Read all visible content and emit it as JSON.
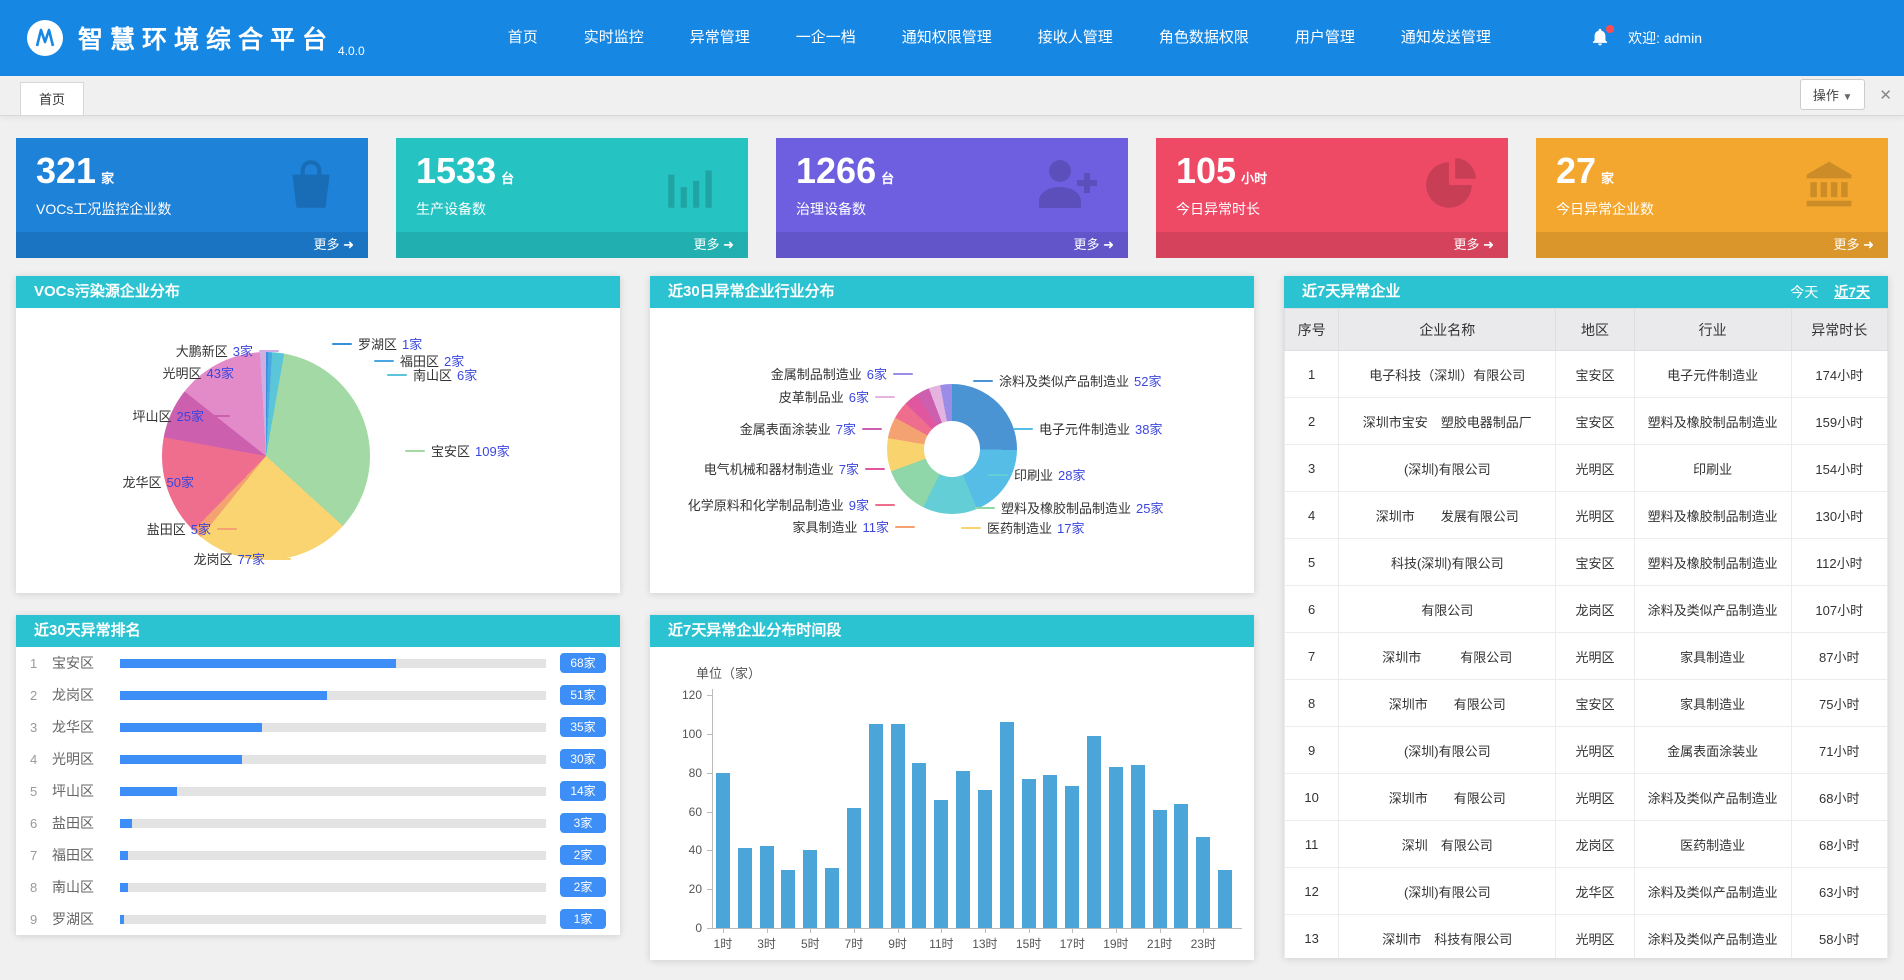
{
  "navbar": {
    "title": "智慧环境综合平台",
    "version": "4.0.0",
    "menu": [
      "首页",
      "实时监控",
      "异常管理",
      "一企一档",
      "通知权限管理",
      "接收人管理",
      "角色数据权限",
      "用户管理",
      "通知发送管理"
    ],
    "welcome": "欢迎: admin"
  },
  "tabbar": {
    "active_tab": "首页",
    "ops_label": "操作"
  },
  "stat_cards": [
    {
      "value": "321",
      "unit": "家",
      "label": "VOCs工况监控企业数",
      "more": "更多",
      "color": "#1e82d9",
      "footer_color": "rgba(0,0,0,0.10)",
      "icon": "bag-icon"
    },
    {
      "value": "1533",
      "unit": "台",
      "label": "生产设备数",
      "more": "更多",
      "color": "#26c3c3",
      "footer_color": "rgba(0,0,0,0.10)",
      "icon": "bar-chart-icon"
    },
    {
      "value": "1266",
      "unit": "台",
      "label": "治理设备数",
      "more": "更多",
      "color": "#6e5fe0",
      "footer_color": "rgba(0,0,0,0.10)",
      "icon": "user-plus-icon"
    },
    {
      "value": "105",
      "unit": "小时",
      "label": "今日异常时长",
      "more": "更多",
      "color": "#ee4a66",
      "footer_color": "rgba(0,0,0,0.10)",
      "icon": "pie-icon"
    },
    {
      "value": "27",
      "unit": "家",
      "label": "今日异常企业数",
      "more": "更多",
      "color": "#f3a72f",
      "footer_color": "rgba(0,0,0,0.10)",
      "icon": "bank-icon"
    }
  ],
  "chart_data": [
    {
      "id": "district_pie",
      "type": "pie",
      "title": "VOCs污染源企业分布",
      "unit": "家",
      "labels": [
        "罗湖区",
        "福田区",
        "南山区",
        "宝安区",
        "龙岗区",
        "盐田区",
        "龙华区",
        "坪山区",
        "光明区",
        "大鹏新区"
      ],
      "values": [
        1,
        2,
        6,
        109,
        77,
        5,
        50,
        25,
        43,
        3
      ],
      "colors": [
        "#3a8fd9",
        "#49a8e3",
        "#5bc6da",
        "#a3d9a5",
        "#f9d470",
        "#f5a273",
        "#ef6e8e",
        "#cc5fae",
        "#e38bc9",
        "#cfaee3"
      ],
      "legend_position": "around",
      "total": 321
    },
    {
      "id": "industry_donut",
      "type": "pie",
      "subtype": "donut",
      "title": "近30日异常企业行业分布",
      "unit": "家",
      "labels": [
        "涂料及类似产品制造业",
        "电子元件制造业",
        "印刷业",
        "塑料及橡胶制品制造业",
        "医药制造业",
        "家具制造业",
        "化学原料和化学制品制造业",
        "电气机械和器材制造业",
        "金属表面涂装业",
        "皮革制品业",
        "金属制品制造业"
      ],
      "values": [
        52,
        38,
        28,
        25,
        17,
        11,
        9,
        7,
        7,
        6,
        6
      ],
      "colors": [
        "#4a94d4",
        "#55bde6",
        "#63ced6",
        "#8fd6a8",
        "#f8d36e",
        "#f5a273",
        "#ef6e8e",
        "#e0579f",
        "#cc5fae",
        "#e5b3df",
        "#9b8ce8"
      ],
      "legend_position": "around",
      "total": 206
    },
    {
      "id": "rank30",
      "type": "bar",
      "orientation": "horizontal",
      "title": "近30天异常排名",
      "unit": "家",
      "categories": [
        "宝安区",
        "龙岗区",
        "龙华区",
        "光明区",
        "坪山区",
        "盐田区",
        "福田区",
        "南山区",
        "罗湖区"
      ],
      "values": [
        68,
        51,
        35,
        30,
        14,
        3,
        2,
        2,
        1
      ],
      "xlim": [
        0,
        105
      ]
    },
    {
      "id": "hour_dist",
      "type": "bar",
      "title": "近7天异常企业分布时间段",
      "ylabel": "单位（家）",
      "categories": [
        "1时",
        "2时",
        "3时",
        "4时",
        "5时",
        "6时",
        "7时",
        "8时",
        "9时",
        "10时",
        "11时",
        "12时",
        "13时",
        "14时",
        "15时",
        "16时",
        "17时",
        "18时",
        "19时",
        "20时",
        "21时",
        "22时",
        "23时",
        "24时"
      ],
      "values": [
        80,
        41,
        42,
        30,
        40,
        31,
        62,
        105,
        105,
        85,
        66,
        81,
        71,
        106,
        77,
        79,
        73,
        99,
        83,
        84,
        61,
        64,
        47,
        30
      ],
      "ylim": [
        0,
        120
      ],
      "ytick_step": 20,
      "xtick_labels": [
        "1时",
        "3时",
        "5时",
        "7时",
        "9时",
        "11时",
        "13时",
        "15时",
        "17时",
        "19时",
        "21时",
        "23时"
      ]
    }
  ],
  "table": {
    "title": "近7天异常企业",
    "filters": [
      "今天",
      "近7天"
    ],
    "active_filter": "近7天",
    "headers": [
      "序号",
      "企业名称",
      "地区",
      "行业",
      "异常时长"
    ],
    "rows": [
      [
        "1",
        "电子科技（深圳）有限公司",
        "宝安区",
        "电子元件制造业",
        "174小时"
      ],
      [
        "2",
        "深圳市宝安　塑胶电器制品厂",
        "宝安区",
        "塑料及橡胶制品制造业",
        "159小时"
      ],
      [
        "3",
        "(深圳)有限公司",
        "光明区",
        "印刷业",
        "154小时"
      ],
      [
        "4",
        "深圳市　　发展有限公司",
        "光明区",
        "塑料及橡胶制品制造业",
        "130小时"
      ],
      [
        "5",
        "科技(深圳)有限公司",
        "宝安区",
        "塑料及橡胶制品制造业",
        "112小时"
      ],
      [
        "6",
        "有限公司",
        "龙岗区",
        "涂料及类似产品制造业",
        "107小时"
      ],
      [
        "7",
        "深圳市　　　有限公司",
        "光明区",
        "家具制造业",
        "87小时"
      ],
      [
        "8",
        "深圳市　　有限公司",
        "宝安区",
        "家具制造业",
        "75小时"
      ],
      [
        "9",
        "(深圳)有限公司",
        "光明区",
        "金属表面涂装业",
        "71小时"
      ],
      [
        "10",
        "深圳市　　有限公司",
        "光明区",
        "涂料及类似产品制造业",
        "68小时"
      ],
      [
        "11",
        "深圳　有限公司",
        "龙岗区",
        "医药制造业",
        "68小时"
      ],
      [
        "12",
        "(深圳)有限公司",
        "龙华区",
        "涂料及类似产品制造业",
        "63小时"
      ],
      [
        "13",
        "深圳市　科技有限公司",
        "光明区",
        "涂料及类似产品制造业",
        "58小时"
      ]
    ]
  }
}
